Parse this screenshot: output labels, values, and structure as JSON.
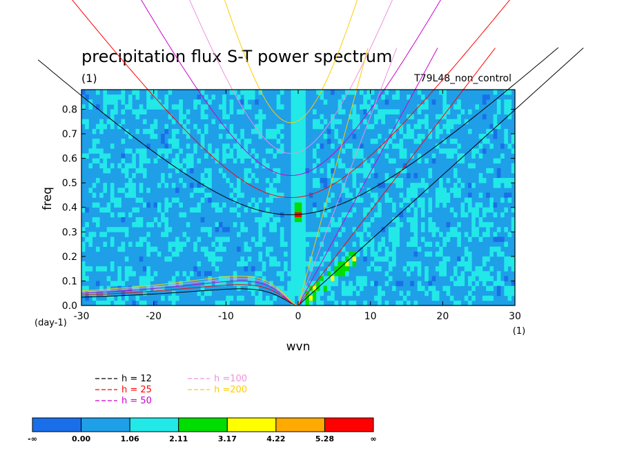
{
  "chart_data": {
    "type": "heatmap",
    "title": "precipitation flux S-T power spectrum",
    "units_left": "(1)",
    "run_label": "T79L48_non_control",
    "xlabel": "wvn",
    "x_units": "(1)",
    "ylabel": "freq",
    "y_units": "(day-1)",
    "xlim": [
      -30,
      30
    ],
    "ylim": [
      0,
      0.88
    ],
    "x_ticks": [
      "-30",
      "-20",
      "-10",
      "0",
      "10",
      "20",
      "30"
    ],
    "y_ticks": [
      "0.0",
      "0.1",
      "0.2",
      "0.3",
      "0.4",
      "0.5",
      "0.6",
      "0.7",
      "0.8"
    ],
    "x_tick_values": [
      -30,
      -20,
      -10,
      0,
      10,
      20,
      30
    ],
    "y_tick_values": [
      0,
      0.1,
      0.2,
      0.3,
      0.4,
      0.5,
      0.6,
      0.7,
      0.8
    ],
    "dispersion_curves": [
      {
        "label": "h = 12",
        "h": 12,
        "color": "#000000"
      },
      {
        "label": "h = 25",
        "h": 25,
        "color": "#ff0000"
      },
      {
        "label": "h = 50",
        "h": 50,
        "color": "#cc00cc"
      },
      {
        "label": "h =100",
        "h": 100,
        "color": "#ee90dd"
      },
      {
        "label": "h =200",
        "h": 200,
        "color": "#ffcc00"
      }
    ],
    "kelvin_slopes": [
      {
        "h": 12,
        "slope": 0.0266
      },
      {
        "h": 25,
        "slope": 0.0385
      },
      {
        "h": 50,
        "slope": 0.0544
      },
      {
        "h": 100,
        "slope": 0.077
      },
      {
        "h": 200,
        "slope": 0.1088
      }
    ],
    "ig_min_freq": [
      0.37,
      0.44,
      0.53,
      0.62,
      0.745
    ],
    "er_max_freq": [
      0.068,
      0.085,
      0.1,
      0.11,
      0.12
    ],
    "colorbar": {
      "levels": [
        "-∞",
        "0.00",
        "1.06",
        "2.11",
        "3.17",
        "4.22",
        "5.28",
        "∞"
      ],
      "colors": [
        "#1a6fe8",
        "#1e9fe8",
        "#22e8e8",
        "#00dd00",
        "#ffff00",
        "#ffaa00",
        "#ff0000"
      ]
    }
  }
}
